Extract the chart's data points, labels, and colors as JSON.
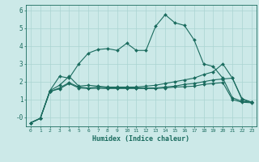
{
  "title": "",
  "xlabel": "Humidex (Indice chaleur)",
  "background_color": "#cce9e8",
  "grid_color": "#aad4d2",
  "line_color": "#1a6b5e",
  "xlim": [
    -0.5,
    23.5
  ],
  "ylim": [
    -0.5,
    6.3
  ],
  "yticks": [
    0,
    1,
    2,
    3,
    4,
    5,
    6
  ],
  "ytick_labels": [
    "-0",
    "1",
    "2",
    "3",
    "4",
    "5",
    "6"
  ],
  "xticks": [
    0,
    1,
    2,
    3,
    4,
    5,
    6,
    7,
    8,
    9,
    10,
    11,
    12,
    13,
    14,
    15,
    16,
    17,
    18,
    19,
    20,
    21,
    22,
    23
  ],
  "line1_x": [
    0,
    1,
    2,
    3,
    4,
    5,
    6,
    7,
    8,
    9,
    10,
    11,
    12,
    13,
    14,
    15,
    16,
    17,
    18,
    19,
    20,
    21,
    22,
    23
  ],
  "line1_y": [
    -0.3,
    -0.05,
    1.5,
    2.3,
    2.2,
    3.0,
    3.6,
    3.8,
    3.85,
    3.75,
    4.15,
    3.75,
    3.75,
    5.1,
    5.75,
    5.3,
    5.15,
    4.35,
    3.0,
    2.85,
    2.2,
    1.1,
    0.9,
    0.85
  ],
  "line2_x": [
    0,
    1,
    2,
    3,
    4,
    5,
    6,
    7,
    8,
    9,
    10,
    11,
    12,
    13,
    14,
    15,
    16,
    17,
    18,
    19,
    20,
    21,
    22,
    23
  ],
  "line2_y": [
    -0.3,
    -0.05,
    1.5,
    1.8,
    2.3,
    1.75,
    1.8,
    1.75,
    1.7,
    1.7,
    1.7,
    1.7,
    1.75,
    1.8,
    1.9,
    2.0,
    2.1,
    2.2,
    2.4,
    2.55,
    3.0,
    2.2,
    1.05,
    0.85
  ],
  "line3_x": [
    0,
    1,
    2,
    3,
    4,
    5,
    6,
    7,
    8,
    9,
    10,
    11,
    12,
    13,
    14,
    15,
    16,
    17,
    18,
    19,
    20,
    21,
    22,
    23
  ],
  "line3_y": [
    -0.3,
    -0.05,
    1.45,
    1.65,
    1.95,
    1.7,
    1.65,
    1.7,
    1.65,
    1.65,
    1.65,
    1.65,
    1.65,
    1.65,
    1.7,
    1.75,
    1.85,
    1.9,
    2.0,
    2.1,
    2.15,
    2.2,
    1.0,
    0.85
  ],
  "line4_x": [
    0,
    1,
    2,
    3,
    4,
    5,
    6,
    7,
    8,
    9,
    10,
    11,
    12,
    13,
    14,
    15,
    16,
    17,
    18,
    19,
    20,
    21,
    22,
    23
  ],
  "line4_y": [
    -0.3,
    -0.05,
    1.45,
    1.6,
    1.9,
    1.65,
    1.62,
    1.63,
    1.62,
    1.62,
    1.62,
    1.62,
    1.62,
    1.62,
    1.65,
    1.7,
    1.72,
    1.75,
    1.85,
    1.9,
    1.95,
    1.0,
    0.85,
    0.82
  ]
}
